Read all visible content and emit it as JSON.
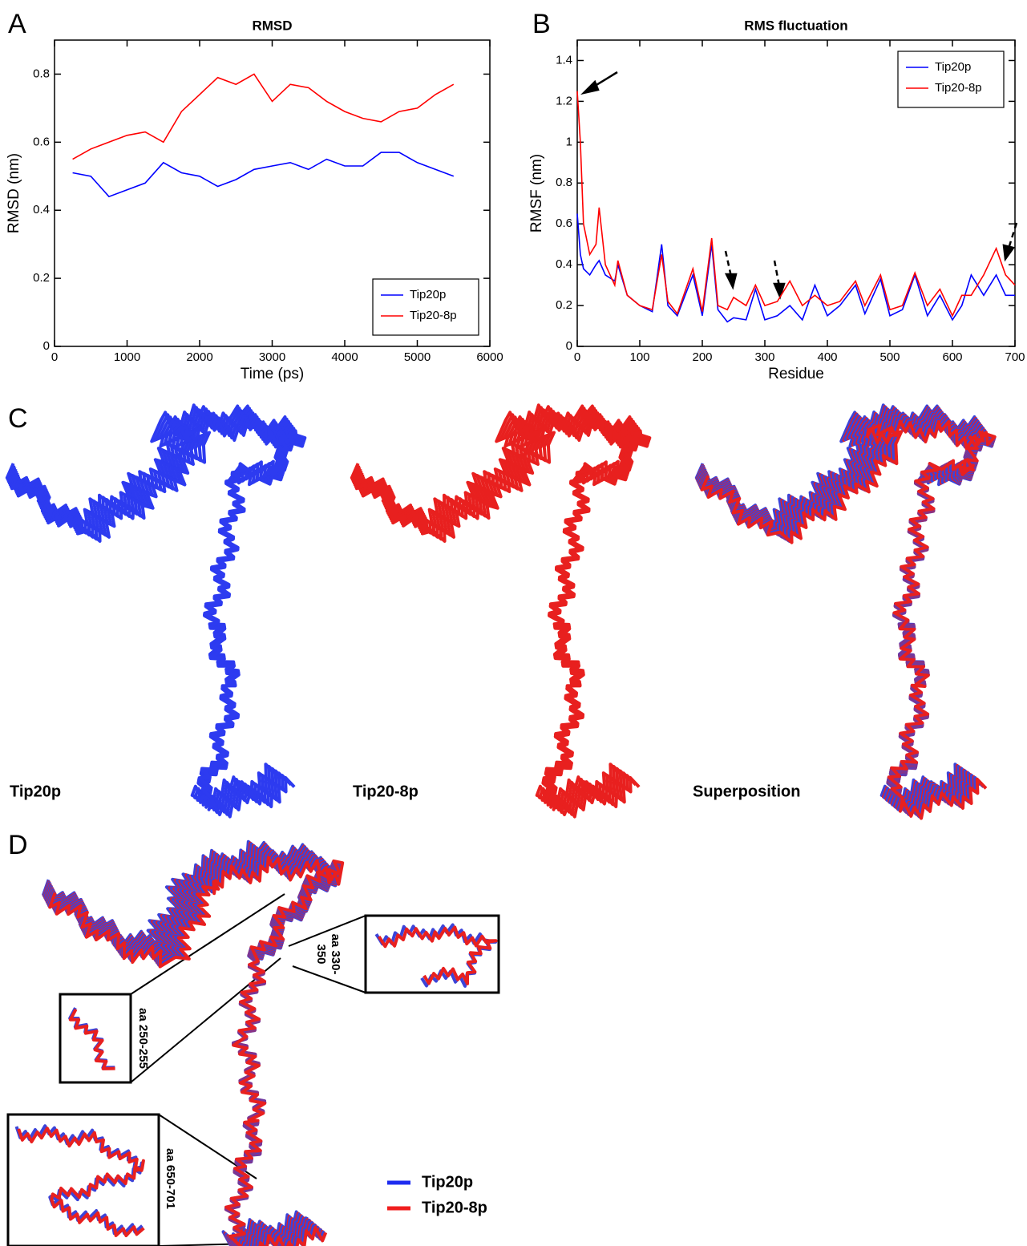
{
  "chart_data": [
    {
      "type": "line",
      "title": "RMSD",
      "xlabel": "Time (ps)",
      "ylabel": "RMSD (nm)",
      "x": [
        250,
        500,
        750,
        1000,
        1250,
        1500,
        1750,
        2000,
        2250,
        2500,
        2750,
        3000,
        3250,
        3500,
        3750,
        4000,
        4250,
        4500,
        4750,
        5000,
        5250,
        5500
      ],
      "series": [
        {
          "name": "Tip20p",
          "color": "#0000ff",
          "values": [
            0.51,
            0.5,
            0.44,
            0.46,
            0.48,
            0.54,
            0.51,
            0.5,
            0.47,
            0.49,
            0.52,
            0.53,
            0.54,
            0.52,
            0.55,
            0.53,
            0.53,
            0.57,
            0.57,
            0.54,
            0.52,
            0.5
          ]
        },
        {
          "name": "Tip20-8p",
          "color": "#ff0000",
          "values": [
            0.55,
            0.58,
            0.6,
            0.62,
            0.63,
            0.6,
            0.69,
            0.74,
            0.79,
            0.77,
            0.8,
            0.72,
            0.77,
            0.76,
            0.72,
            0.69,
            0.67,
            0.66,
            0.69,
            0.7,
            0.74,
            0.77
          ]
        }
      ],
      "xlim": [
        0,
        6000
      ],
      "xticks": [
        0,
        1000,
        2000,
        3000,
        4000,
        5000,
        6000
      ],
      "ylim": [
        0,
        0.9
      ],
      "yticks": [
        0,
        0.2,
        0.4,
        0.6,
        0.8
      ],
      "legend": "lower right"
    },
    {
      "type": "line",
      "title": "RMS fluctuation",
      "xlabel": "Residue",
      "ylabel": "RMSF (nm)",
      "x": [
        0,
        5,
        10,
        20,
        30,
        35,
        45,
        60,
        65,
        80,
        100,
        120,
        135,
        145,
        160,
        185,
        200,
        215,
        225,
        240,
        250,
        270,
        285,
        300,
        320,
        340,
        360,
        380,
        400,
        420,
        445,
        460,
        485,
        500,
        520,
        540,
        560,
        580,
        600,
        615,
        630,
        650,
        670,
        685,
        700
      ],
      "series": [
        {
          "name": "Tip20p",
          "color": "#0000ff",
          "values": [
            0.65,
            0.45,
            0.38,
            0.35,
            0.4,
            0.42,
            0.35,
            0.32,
            0.4,
            0.25,
            0.2,
            0.17,
            0.5,
            0.2,
            0.15,
            0.35,
            0.15,
            0.5,
            0.18,
            0.12,
            0.14,
            0.13,
            0.28,
            0.13,
            0.15,
            0.2,
            0.13,
            0.3,
            0.15,
            0.2,
            0.3,
            0.16,
            0.33,
            0.15,
            0.18,
            0.35,
            0.15,
            0.25,
            0.13,
            0.2,
            0.35,
            0.25,
            0.35,
            0.25,
            0.25
          ]
        },
        {
          "name": "Tip20-8p",
          "color": "#ff0000",
          "values": [
            1.25,
            1.0,
            0.6,
            0.45,
            0.5,
            0.68,
            0.4,
            0.3,
            0.42,
            0.25,
            0.2,
            0.18,
            0.45,
            0.22,
            0.16,
            0.38,
            0.17,
            0.53,
            0.2,
            0.18,
            0.24,
            0.2,
            0.3,
            0.2,
            0.22,
            0.32,
            0.2,
            0.25,
            0.2,
            0.22,
            0.32,
            0.2,
            0.35,
            0.18,
            0.2,
            0.36,
            0.2,
            0.28,
            0.15,
            0.25,
            0.25,
            0.35,
            0.48,
            0.35,
            0.3
          ]
        }
      ],
      "xlim": [
        0,
        700
      ],
      "xticks": [
        0,
        100,
        200,
        300,
        400,
        500,
        600,
        700
      ],
      "ylim": [
        0,
        1.5
      ],
      "yticks": [
        0,
        0.2,
        0.4,
        0.6,
        0.8,
        1,
        1.2,
        1.4
      ],
      "legend": "upper right"
    }
  ],
  "panel_labels": [
    "A",
    "B",
    "C",
    "D"
  ],
  "structure_labels": [
    "Tip20p",
    "Tip20-8p",
    "Superposition"
  ],
  "insets": [
    "aa 250-255",
    [
      "aa 330-",
      "350"
    ],
    "aa 650-701"
  ],
  "legend_d": [
    "Tip20p",
    "Tip20-8p"
  ]
}
